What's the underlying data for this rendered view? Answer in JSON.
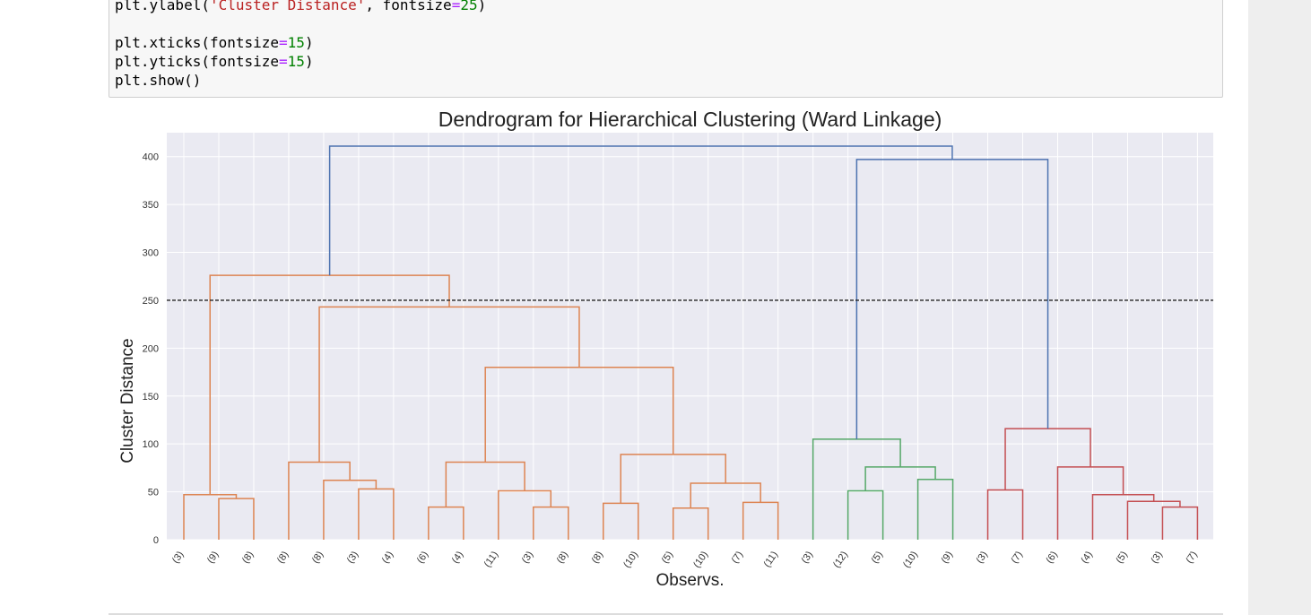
{
  "code_lines": [
    [
      {
        "t": "plt.ylabel("
      },
      {
        "t": "'Cluster Distance'",
        "c": "str"
      },
      {
        "t": ", fontsize"
      },
      {
        "t": "=",
        "c": "op"
      },
      {
        "t": "25",
        "c": "num"
      },
      {
        "t": ")"
      }
    ],
    [],
    [
      {
        "t": "plt.xticks(fontsize"
      },
      {
        "t": "=",
        "c": "op"
      },
      {
        "t": "15",
        "c": "num"
      },
      {
        "t": ")"
      }
    ],
    [
      {
        "t": "plt.yticks(fontsize"
      },
      {
        "t": "=",
        "c": "op"
      },
      {
        "t": "15",
        "c": "num"
      },
      {
        "t": ")"
      }
    ],
    [
      {
        "t": "plt.show()"
      }
    ]
  ],
  "chart_data": {
    "type": "dendrogram",
    "title": "Dendrogram for Hierarchical Clustering (Ward Linkage)",
    "xlabel": "Observs.",
    "ylabel": "Cluster Distance",
    "ylim": [
      0,
      425
    ],
    "yticks": [
      0,
      50,
      100,
      150,
      200,
      250,
      300,
      350,
      400
    ],
    "grid": true,
    "cut_line": 250,
    "leaf_labels": [
      "(3)",
      "(9)",
      "(8)",
      "(8)",
      "(8)",
      "(3)",
      "(4)",
      "(6)",
      "(4)",
      "(11)",
      "(3)",
      "(8)",
      "(8)",
      "(10)",
      "(5)",
      "(10)",
      "(7)",
      "(11)",
      "(3)",
      "(12)",
      "(5)",
      "(10)",
      "(9)",
      "(3)",
      "(7)",
      "(6)",
      "(4)",
      "(5)",
      "(3)",
      "(7)"
    ],
    "colors": {
      "C1": "#dd8452",
      "C2": "#55a868",
      "C3": "#c44e52",
      "link": "#4c72b0",
      "cut": "#222222",
      "bg": "#eaeaf2",
      "grid": "#ffffff"
    },
    "links": [
      {
        "a": 1,
        "b": 2,
        "h": 43,
        "c": "C1"
      },
      {
        "a": 0,
        "b": "L0",
        "h": 47,
        "c": "C1"
      },
      {
        "a": 5,
        "b": 6,
        "h": 53,
        "c": "C1"
      },
      {
        "a": 4,
        "b": "L2",
        "h": 62,
        "c": "C1"
      },
      {
        "a": 3,
        "b": "L3",
        "h": 81,
        "c": "C1"
      },
      {
        "a": 7,
        "b": 8,
        "h": 34,
        "c": "C1"
      },
      {
        "a": 10,
        "b": 11,
        "h": 34,
        "c": "C1"
      },
      {
        "a": 9,
        "b": "L6",
        "h": 51,
        "c": "C1"
      },
      {
        "a": "L5",
        "b": "L7",
        "h": 81,
        "c": "C1"
      },
      {
        "a": 12,
        "b": 13,
        "h": 38,
        "c": "C1"
      },
      {
        "a": 14,
        "b": 15,
        "h": 33,
        "c": "C1"
      },
      {
        "a": 16,
        "b": 17,
        "h": 39,
        "c": "C1"
      },
      {
        "a": "L10",
        "b": "L11",
        "h": 59,
        "c": "C1"
      },
      {
        "a": "L9",
        "b": "L12",
        "h": 89,
        "c": "C1"
      },
      {
        "a": "L8",
        "b": "L13",
        "h": 180,
        "c": "C1"
      },
      {
        "a": "L4",
        "b": "L14",
        "h": 243,
        "c": "C1"
      },
      {
        "a": "L1",
        "b": "L15",
        "h": 276,
        "c": "C1"
      },
      {
        "a": 19,
        "b": 20,
        "h": 51,
        "c": "C2"
      },
      {
        "a": 21,
        "b": 22,
        "h": 63,
        "c": "C2"
      },
      {
        "a": "L17",
        "b": "L18",
        "h": 76,
        "c": "C2"
      },
      {
        "a": 18,
        "b": "L19",
        "h": 105,
        "c": "C2"
      },
      {
        "a": 23,
        "b": 24,
        "h": 52,
        "c": "C3"
      },
      {
        "a": 28,
        "b": 29,
        "h": 34,
        "c": "C3"
      },
      {
        "a": 27,
        "b": "L22",
        "h": 40,
        "c": "C3"
      },
      {
        "a": 26,
        "b": "L23",
        "h": 47,
        "c": "C3"
      },
      {
        "a": 25,
        "b": "L24",
        "h": 76,
        "c": "C3"
      },
      {
        "a": "L21",
        "b": "L25",
        "h": 116,
        "c": "C3"
      },
      {
        "a": "L20",
        "b": "L26",
        "h": 397,
        "c": "link"
      },
      {
        "a": "L16",
        "b": "L27",
        "h": 411,
        "c": "link"
      }
    ]
  }
}
